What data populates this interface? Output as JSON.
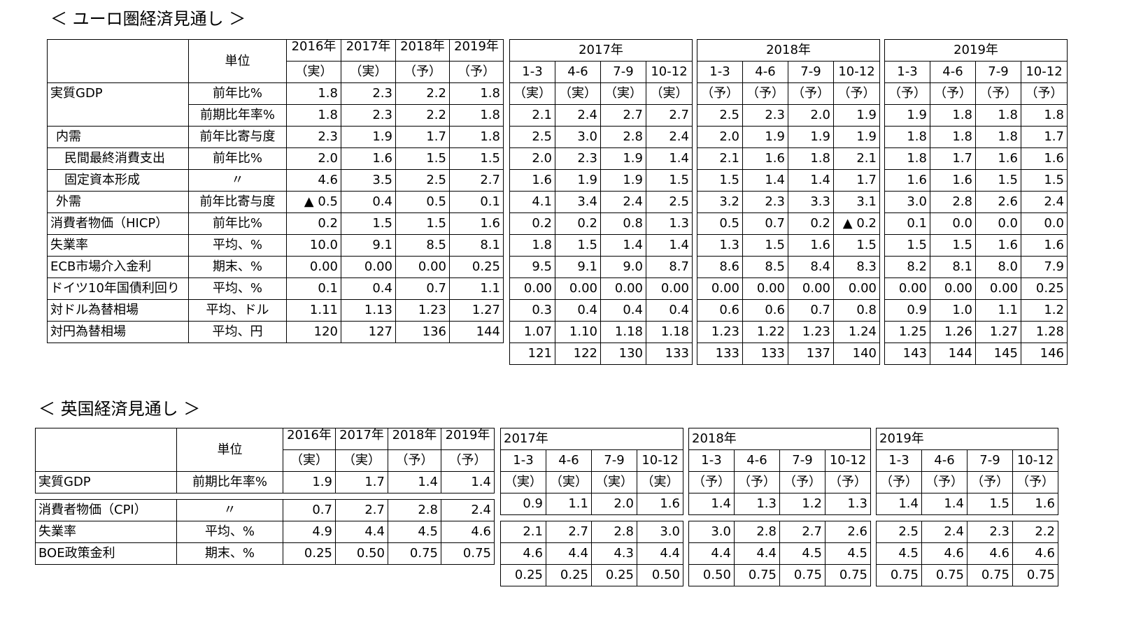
{
  "euro": {
    "title": "＜ ユーロ圏経済見通し ＞",
    "unit_header": "単位",
    "annual": {
      "years": [
        "2016年",
        "2017年",
        "2018年",
        "2019年"
      ],
      "status": [
        "（実）",
        "（実）",
        "（予）",
        "（予）"
      ]
    },
    "quarterly_groups": [
      {
        "year": "2017年",
        "quarters": [
          "1-3",
          "4-6",
          "7-9",
          "10-12"
        ],
        "status": [
          "（実）",
          "（実）",
          "（実）",
          "（実）"
        ]
      },
      {
        "year": "2018年",
        "quarters": [
          "1-3",
          "4-6",
          "7-9",
          "10-12"
        ],
        "status": [
          "（予）",
          "（予）",
          "（予）",
          "（予）"
        ]
      },
      {
        "year": "2019年",
        "quarters": [
          "1-3",
          "4-6",
          "7-9",
          "10-12"
        ],
        "status": [
          "（予）",
          "（予）",
          "（予）",
          "（予）"
        ]
      }
    ],
    "rows": [
      {
        "label": "実質GDP",
        "unit": "前年比%",
        "annual": [
          "1.8",
          "2.3",
          "2.2",
          "1.8"
        ],
        "q": [
          [
            "2.1",
            "2.4",
            "2.7",
            "2.7"
          ],
          [
            "2.5",
            "2.3",
            "2.0",
            "1.9"
          ],
          [
            "1.9",
            "1.8",
            "1.8",
            "1.8"
          ]
        ]
      },
      {
        "label": "",
        "unit": "前期比年率%",
        "annual": [
          "1.8",
          "2.3",
          "2.2",
          "1.8"
        ],
        "q": [
          [
            "2.5",
            "3.0",
            "2.8",
            "2.4"
          ],
          [
            "2.0",
            "1.9",
            "1.9",
            "1.9"
          ],
          [
            "1.8",
            "1.8",
            "1.8",
            "1.7"
          ]
        ]
      },
      {
        "label": "内需",
        "unit": "前年比寄与度",
        "annual": [
          "2.3",
          "1.9",
          "1.7",
          "1.8"
        ],
        "q": [
          [
            "2.0",
            "2.3",
            "1.9",
            "1.4"
          ],
          [
            "2.1",
            "1.6",
            "1.8",
            "2.1"
          ],
          [
            "1.8",
            "1.7",
            "1.6",
            "1.6"
          ]
        ]
      },
      {
        "label": "民間最終消費支出",
        "unit": "前年比%",
        "annual": [
          "2.0",
          "1.6",
          "1.5",
          "1.5"
        ],
        "q": [
          [
            "1.6",
            "1.9",
            "1.9",
            "1.5"
          ],
          [
            "1.5",
            "1.4",
            "1.4",
            "1.7"
          ],
          [
            "1.6",
            "1.6",
            "1.5",
            "1.5"
          ]
        ]
      },
      {
        "label": "固定資本形成",
        "unit": "〃",
        "annual": [
          "4.6",
          "3.5",
          "2.5",
          "2.7"
        ],
        "q": [
          [
            "4.1",
            "3.4",
            "2.4",
            "2.5"
          ],
          [
            "3.2",
            "2.3",
            "3.3",
            "3.1"
          ],
          [
            "3.0",
            "2.8",
            "2.6",
            "2.4"
          ]
        ]
      },
      {
        "label": "外需",
        "unit": "前年比寄与度",
        "annual": [
          "▲ 0.5",
          "0.4",
          "0.5",
          "0.1"
        ],
        "q": [
          [
            "0.2",
            "0.2",
            "0.8",
            "1.3"
          ],
          [
            "0.5",
            "0.7",
            "0.2",
            "▲ 0.2"
          ],
          [
            "0.1",
            "0.0",
            "0.0",
            "0.0"
          ]
        ]
      },
      {
        "label": "消費者物価（HICP）",
        "unit": "前年比%",
        "annual": [
          "0.2",
          "1.5",
          "1.5",
          "1.6"
        ],
        "q": [
          [
            "1.8",
            "1.5",
            "1.4",
            "1.4"
          ],
          [
            "1.3",
            "1.5",
            "1.6",
            "1.5"
          ],
          [
            "1.5",
            "1.5",
            "1.6",
            "1.6"
          ]
        ]
      },
      {
        "label": "失業率",
        "unit": "平均、%",
        "annual": [
          "10.0",
          "9.1",
          "8.5",
          "8.1"
        ],
        "q": [
          [
            "9.5",
            "9.1",
            "9.0",
            "8.7"
          ],
          [
            "8.6",
            "8.5",
            "8.4",
            "8.3"
          ],
          [
            "8.2",
            "8.1",
            "8.0",
            "7.9"
          ]
        ]
      },
      {
        "label": "ECB市場介入金利",
        "unit": "期末、%",
        "annual": [
          "0.00",
          "0.00",
          "0.00",
          "0.25"
        ],
        "q": [
          [
            "0.00",
            "0.00",
            "0.00",
            "0.00"
          ],
          [
            "0.00",
            "0.00",
            "0.00",
            "0.00"
          ],
          [
            "0.00",
            "0.00",
            "0.00",
            "0.25"
          ]
        ]
      },
      {
        "label": "ドイツ10年国債利回り",
        "unit": "平均、%",
        "annual": [
          "0.1",
          "0.4",
          "0.7",
          "1.1"
        ],
        "q": [
          [
            "0.3",
            "0.4",
            "0.4",
            "0.4"
          ],
          [
            "0.6",
            "0.6",
            "0.7",
            "0.8"
          ],
          [
            "0.9",
            "1.0",
            "1.1",
            "1.2"
          ]
        ]
      },
      {
        "label": "対ドル為替相場",
        "unit": "平均、ドル",
        "annual": [
          "1.11",
          "1.13",
          "1.23",
          "1.27"
        ],
        "q": [
          [
            "1.07",
            "1.10",
            "1.18",
            "1.18"
          ],
          [
            "1.23",
            "1.22",
            "1.23",
            "1.24"
          ],
          [
            "1.25",
            "1.26",
            "1.27",
            "1.28"
          ]
        ]
      },
      {
        "label": "対円為替相場",
        "unit": "平均、円",
        "annual": [
          "120",
          "127",
          "136",
          "144"
        ],
        "q": [
          [
            "121",
            "122",
            "130",
            "133"
          ],
          [
            "133",
            "133",
            "137",
            "140"
          ],
          [
            "143",
            "144",
            "145",
            "146"
          ]
        ]
      }
    ]
  },
  "uk": {
    "title": "＜ 英国経済見通し ＞",
    "unit_header": "単位",
    "annual": {
      "years": [
        "2016年",
        "2017年",
        "2018年",
        "2019年"
      ],
      "status": [
        "（実）",
        "（実）",
        "（予）",
        "（予）"
      ]
    },
    "quarterly_groups": [
      {
        "year": "2017年",
        "quarters": [
          "1-3",
          "4-6",
          "7-9",
          "10-12"
        ],
        "status": [
          "（実）",
          "（実）",
          "（実）",
          "（実）"
        ]
      },
      {
        "year": "2018年",
        "quarters": [
          "1-3",
          "4-6",
          "7-9",
          "10-12"
        ],
        "status": [
          "（予）",
          "（予）",
          "（予）",
          "（予）"
        ]
      },
      {
        "year": "2019年",
        "quarters": [
          "1-3",
          "4-6",
          "7-9",
          "10-12"
        ],
        "status": [
          "（予）",
          "（予）",
          "（予）",
          "（予）"
        ]
      }
    ],
    "rows": [
      {
        "label": "実質GDP",
        "unit": "前期比年率%",
        "annual": [
          "1.9",
          "1.7",
          "1.4",
          "1.4"
        ],
        "q": [
          [
            "0.9",
            "1.1",
            "2.0",
            "1.6"
          ],
          [
            "1.4",
            "1.3",
            "1.2",
            "1.3"
          ],
          [
            "1.4",
            "1.4",
            "1.5",
            "1.6"
          ]
        ]
      },
      {
        "label": "消費者物価（CPI）",
        "unit": "〃",
        "annual": [
          "0.7",
          "2.7",
          "2.8",
          "2.4"
        ],
        "q": [
          [
            "2.1",
            "2.7",
            "2.8",
            "3.0"
          ],
          [
            "3.0",
            "2.8",
            "2.7",
            "2.6"
          ],
          [
            "2.5",
            "2.4",
            "2.3",
            "2.2"
          ]
        ]
      },
      {
        "label": "失業率",
        "unit": "平均、%",
        "annual": [
          "4.9",
          "4.4",
          "4.5",
          "4.6"
        ],
        "q": [
          [
            "4.6",
            "4.4",
            "4.3",
            "4.4"
          ],
          [
            "4.4",
            "4.4",
            "4.5",
            "4.5"
          ],
          [
            "4.5",
            "4.6",
            "4.6",
            "4.6"
          ]
        ]
      },
      {
        "label": "BOE政策金利",
        "unit": "期末、%",
        "annual": [
          "0.25",
          "0.50",
          "0.75",
          "0.75"
        ],
        "q": [
          [
            "0.25",
            "0.25",
            "0.25",
            "0.50"
          ],
          [
            "0.50",
            "0.75",
            "0.75",
            "0.75"
          ],
          [
            "0.75",
            "0.75",
            "0.75",
            "0.75"
          ]
        ]
      }
    ]
  }
}
